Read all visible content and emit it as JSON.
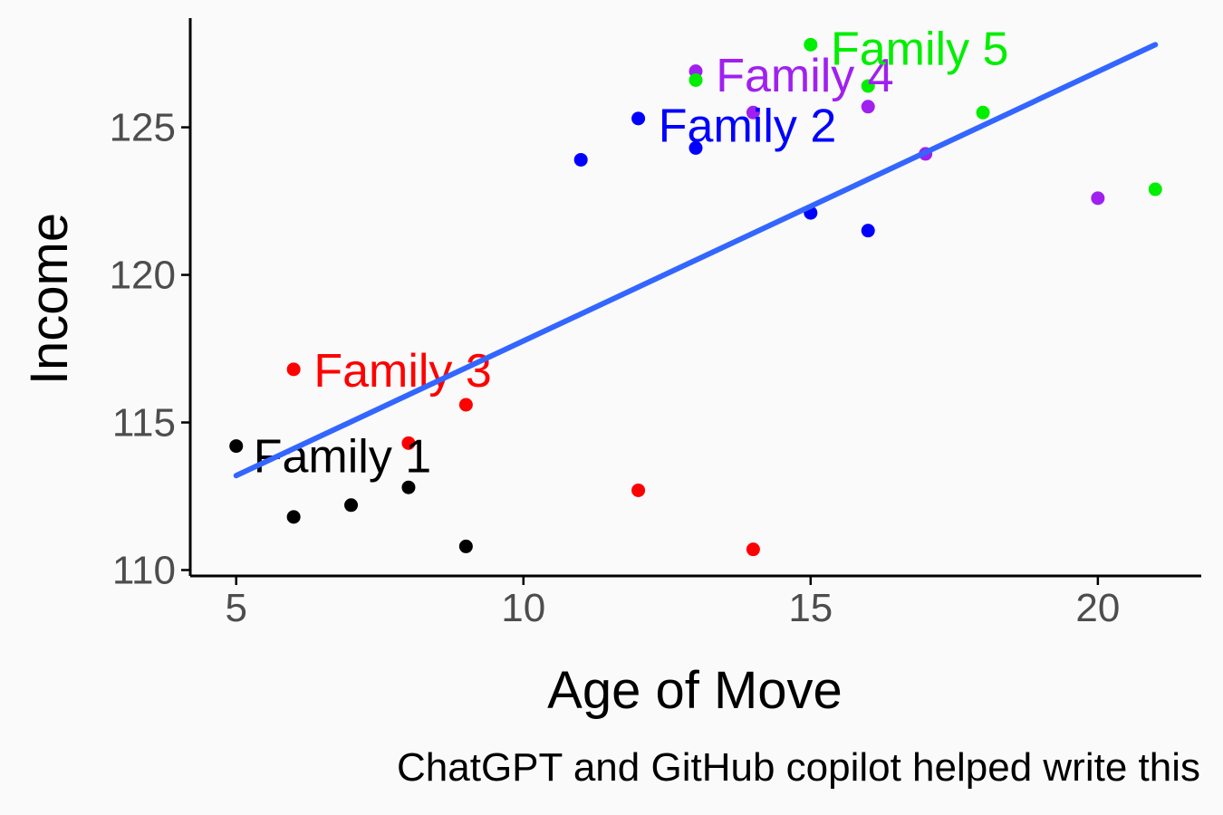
{
  "chart_data": {
    "type": "scatter",
    "xlabel": "Age of Move",
    "ylabel": "Income",
    "caption": "ChatGPT and GitHub copilot helped write this",
    "xlim": [
      4.2,
      21.8
    ],
    "ylim": [
      109.8,
      128.7
    ],
    "x_ticks": [
      5,
      10,
      15,
      20
    ],
    "y_ticks": [
      110,
      115,
      120,
      125
    ],
    "grid": false,
    "legend": "none",
    "trend_line": {
      "method": "linear",
      "color": "#3366ff",
      "x": [
        5,
        21
      ],
      "y": [
        113.2,
        127.8
      ]
    },
    "series": [
      {
        "name": "Family 1",
        "color": "#000000",
        "label_at": [
          5.3,
          113.9
        ],
        "points": [
          {
            "x": 5,
            "y": 114.2
          },
          {
            "x": 6,
            "y": 111.8
          },
          {
            "x": 7,
            "y": 112.2
          },
          {
            "x": 8,
            "y": 112.8
          },
          {
            "x": 9,
            "y": 110.8
          }
        ]
      },
      {
        "name": "Family 2",
        "color": "#0000ff",
        "label_at": [
          12.35,
          125.1
        ],
        "points": [
          {
            "x": 11,
            "y": 123.9
          },
          {
            "x": 12,
            "y": 125.3
          },
          {
            "x": 13,
            "y": 124.3
          },
          {
            "x": 15,
            "y": 122.1
          },
          {
            "x": 16,
            "y": 121.5
          }
        ]
      },
      {
        "name": "Family 3",
        "color": "#ff0000",
        "label_at": [
          6.35,
          116.8
        ],
        "points": [
          {
            "x": 6,
            "y": 116.8
          },
          {
            "x": 8,
            "y": 114.3
          },
          {
            "x": 9,
            "y": 115.6
          },
          {
            "x": 12,
            "y": 112.7
          },
          {
            "x": 14,
            "y": 110.7
          }
        ]
      },
      {
        "name": "Family 4",
        "color": "#a020f0",
        "label_at": [
          13.35,
          126.8
        ],
        "points": [
          {
            "x": 13,
            "y": 126.9
          },
          {
            "x": 14,
            "y": 125.5
          },
          {
            "x": 16,
            "y": 125.7
          },
          {
            "x": 17,
            "y": 124.1
          },
          {
            "x": 20,
            "y": 122.6
          }
        ]
      },
      {
        "name": "Family 5",
        "color": "#00ee00",
        "label_at": [
          15.35,
          127.7
        ],
        "points": [
          {
            "x": 13,
            "y": 126.6
          },
          {
            "x": 15,
            "y": 127.8
          },
          {
            "x": 16,
            "y": 126.4
          },
          {
            "x": 18,
            "y": 125.5
          },
          {
            "x": 21,
            "y": 122.9
          }
        ]
      }
    ]
  }
}
